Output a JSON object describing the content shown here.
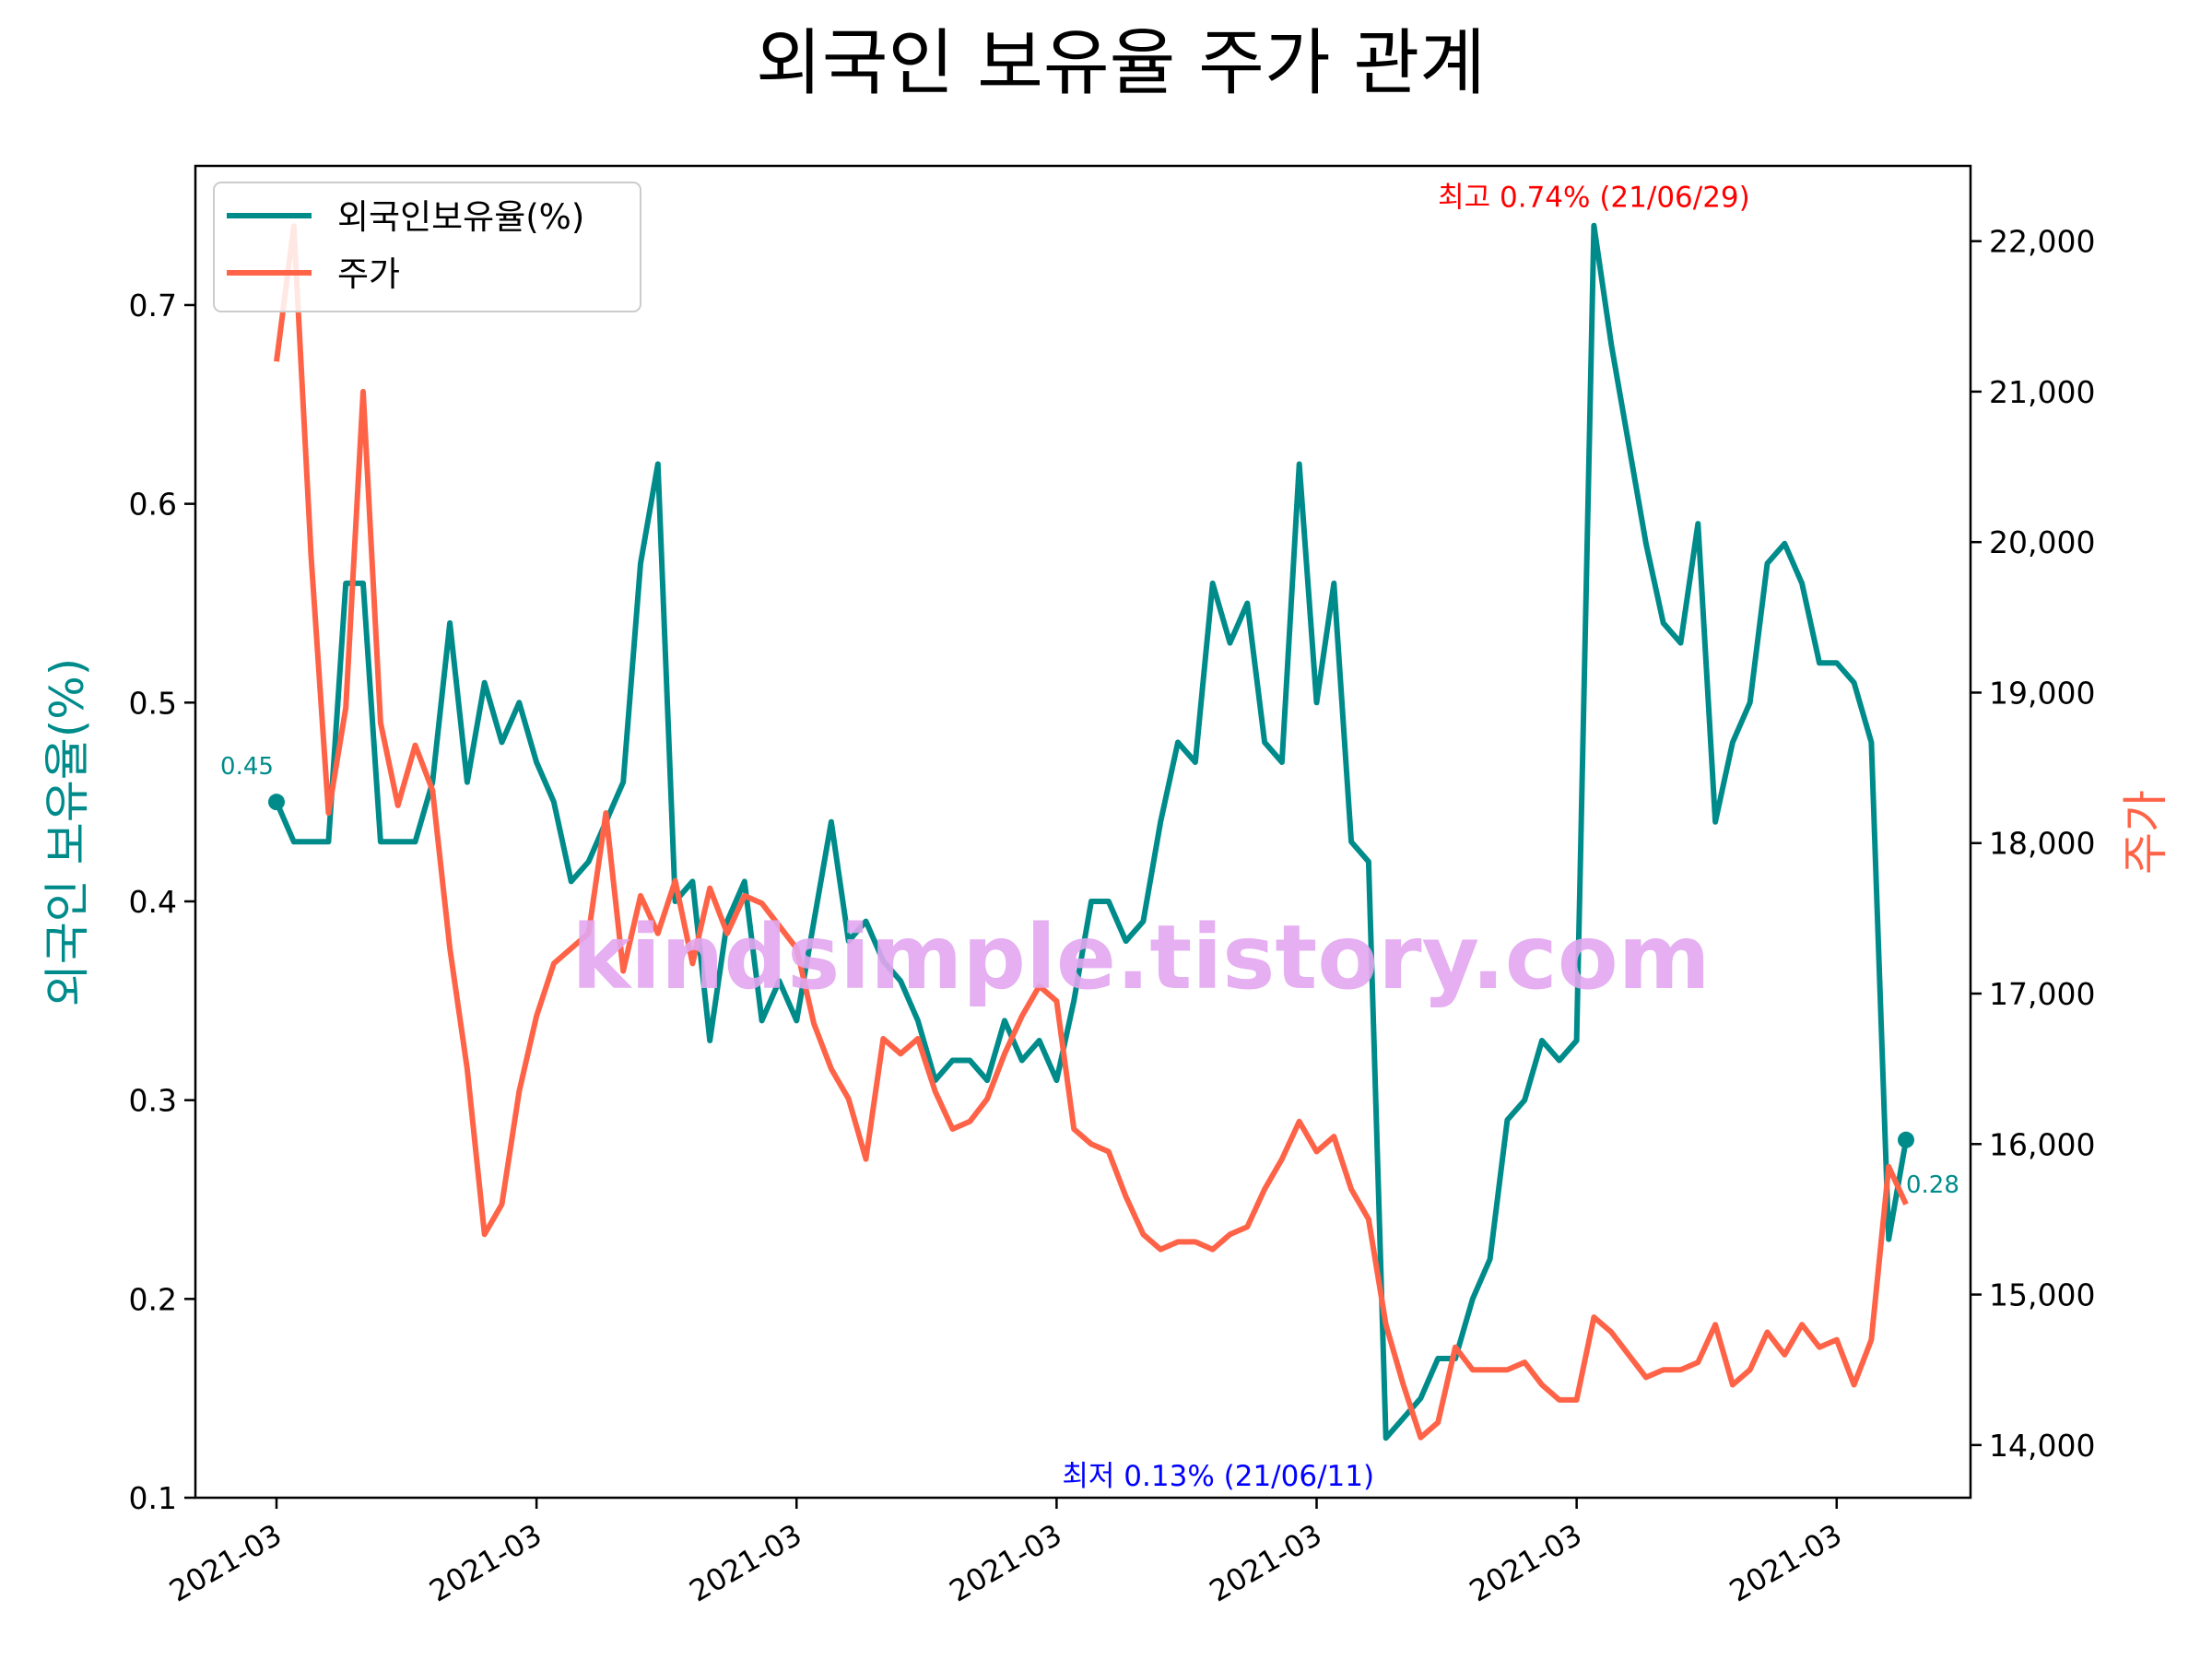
{
  "chart_data": {
    "type": "line",
    "title": "외국인 보유율 주가 관계",
    "xlabel": "",
    "x_tick_labels": [
      "2021-03",
      "2021-03",
      "2021-03",
      "2021-03",
      "2021-03",
      "2021-03",
      "2021-03"
    ],
    "x_tick_index": [
      0,
      15,
      30,
      45,
      60,
      75,
      90
    ],
    "left_axis": {
      "label": "외국인 보유율(%)",
      "ylim": [
        0.1,
        0.77
      ],
      "ticks": [
        "0.1",
        "0.2",
        "0.3",
        "0.4",
        "0.5",
        "0.6",
        "0.7"
      ]
    },
    "right_axis": {
      "label": "주가",
      "ylim": [
        13650,
        22500
      ],
      "ticks": [
        "14,000",
        "15,000",
        "16,000",
        "17,000",
        "18,000",
        "19,000",
        "20,000",
        "21,000",
        "22,000"
      ]
    },
    "grid": false,
    "legend_position": "top-left",
    "series": [
      {
        "name": "외국인보유율(%)",
        "axis": "left",
        "color": "#008b8b",
        "values": [
          0.45,
          0.43,
          0.43,
          0.43,
          0.56,
          0.56,
          0.43,
          0.43,
          0.43,
          0.46,
          0.54,
          0.46,
          0.51,
          0.48,
          0.5,
          0.47,
          0.45,
          0.41,
          0.42,
          0.44,
          0.46,
          0.57,
          0.62,
          0.4,
          0.41,
          0.33,
          0.39,
          0.41,
          0.34,
          0.36,
          0.34,
          0.39,
          0.44,
          0.38,
          0.39,
          0.37,
          0.36,
          0.34,
          0.31,
          0.32,
          0.32,
          0.31,
          0.34,
          0.32,
          0.33,
          0.31,
          0.35,
          0.4,
          0.4,
          0.38,
          0.39,
          0.44,
          0.48,
          0.47,
          0.56,
          0.53,
          0.55,
          0.48,
          0.47,
          0.62,
          0.5,
          0.56,
          0.43,
          0.42,
          0.13,
          0.14,
          0.15,
          0.17,
          0.17,
          0.2,
          0.22,
          0.29,
          0.3,
          0.33,
          0.32,
          0.33,
          0.74,
          0.68,
          0.63,
          0.58,
          0.54,
          0.53,
          0.59,
          0.44,
          0.48,
          0.5,
          0.57,
          0.58,
          0.56,
          0.52,
          0.52,
          0.51,
          0.48,
          0.23,
          0.28
        ]
      },
      {
        "name": "주가",
        "axis": "right",
        "color": "#ff6347",
        "values": [
          21200,
          22100,
          19900,
          18200,
          18900,
          21000,
          18800,
          18250,
          18650,
          18350,
          17300,
          16500,
          15400,
          15600,
          16350,
          16850,
          17200,
          17300,
          17400,
          18200,
          17150,
          17650,
          17400,
          17750,
          17200,
          17700,
          17400,
          17650,
          17600,
          17450,
          17300,
          16800,
          16500,
          16300,
          15900,
          16700,
          16600,
          16700,
          16350,
          16100,
          16150,
          16300,
          16600,
          16850,
          17050,
          16950,
          16100,
          16000,
          15950,
          15650,
          15400,
          15300,
          15350,
          15350,
          15300,
          15400,
          15450,
          15700,
          15900,
          16150,
          15950,
          16050,
          15700,
          15500,
          14800,
          14400,
          14050,
          14150,
          14650,
          14500,
          14500,
          14500,
          14550,
          14400,
          14300,
          14300,
          14850,
          14750,
          14600,
          14450,
          14500,
          14500,
          14550,
          14800,
          14400,
          14500,
          14750,
          14600,
          14800,
          14650,
          14700,
          14400,
          14700,
          15850,
          15600
        ]
      }
    ],
    "annotations": {
      "first_value": {
        "series": 0,
        "index": 0,
        "text": "0.45"
      },
      "last_value": {
        "series": 0,
        "index": 94,
        "text": "0.28"
      },
      "max": {
        "series": 0,
        "index": 76,
        "label": "최고",
        "text": "0.74% (21/06/29)"
      },
      "min": {
        "series": 0,
        "index": 64,
        "label": "최저",
        "text": "0.13% (21/06/11)"
      }
    },
    "watermark": "kindsimple.tistory.com"
  }
}
